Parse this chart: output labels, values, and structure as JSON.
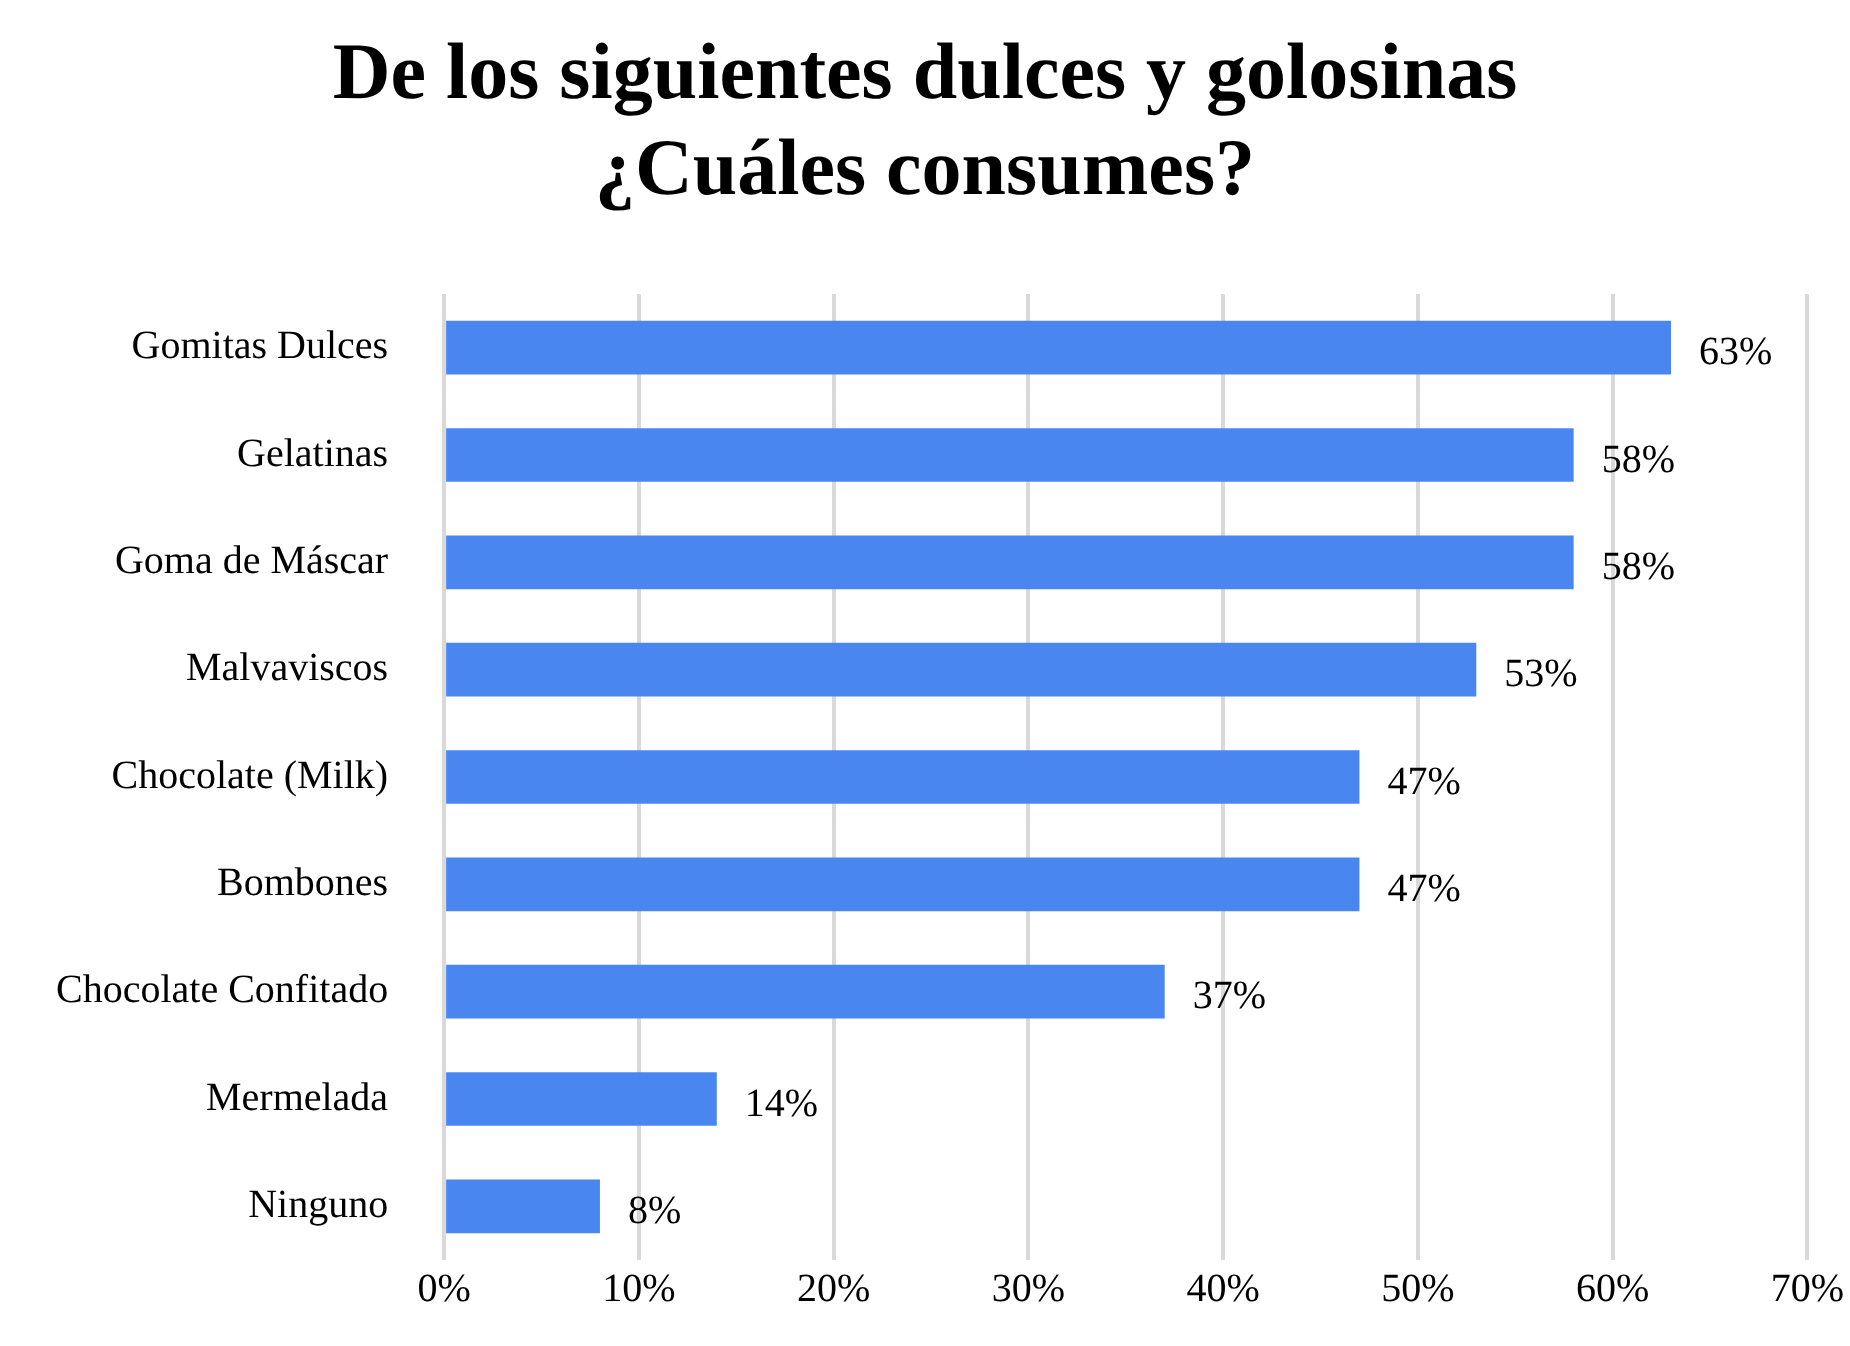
{
  "chart_data": {
    "type": "bar",
    "orientation": "horizontal",
    "title": "De los siguientes dulces y golosinas ¿Cuáles consumes?",
    "categories": [
      "Gomitas Dulces",
      "Gelatinas",
      "Goma de Máscar",
      "Malvaviscos",
      "Chocolate (Milk)",
      "Bombones",
      "Chocolate Confitado",
      "Mermelada",
      "Ninguno"
    ],
    "values": [
      63,
      58,
      58,
      53,
      47,
      47,
      37,
      14,
      8
    ],
    "value_labels": [
      "63%",
      "58%",
      "58%",
      "53%",
      "47%",
      "47%",
      "37%",
      "14%",
      "8%"
    ],
    "color": "#4a86f0",
    "xlim": [
      0,
      70
    ],
    "xticks": [
      {
        "value": 0,
        "label": "0%"
      },
      {
        "value": 10,
        "label": "10%"
      },
      {
        "value": 20,
        "label": "20%"
      },
      {
        "value": 30,
        "label": "30%"
      },
      {
        "value": 40,
        "label": "40%"
      },
      {
        "value": 50,
        "label": "50%"
      },
      {
        "value": 60,
        "label": "60%"
      },
      {
        "value": 70,
        "label": "70%"
      }
    ],
    "grid": "x",
    "legend": false
  }
}
